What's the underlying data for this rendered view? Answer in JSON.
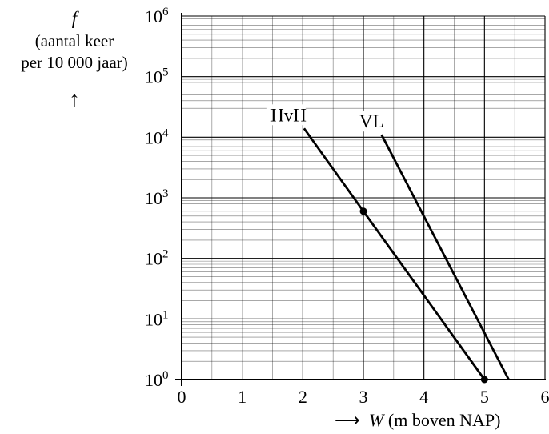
{
  "chart_data": {
    "type": "line",
    "title": "",
    "ylabel_symbol": "f",
    "ylabel_line1": "(aantal keer",
    "ylabel_line2": "per 10 000 jaar)",
    "ylabel_arrow": "↑",
    "xlabel_arrow": "⟶",
    "xlabel_symbol": "W",
    "xlabel_text": " (m boven NAP)",
    "x_scale": "linear",
    "y_scale": "log",
    "xlim": [
      0,
      6
    ],
    "ylim": [
      1,
      1000000
    ],
    "x_ticks": [
      0,
      1,
      2,
      3,
      4,
      5,
      6
    ],
    "y_tick_exponents": [
      0,
      1,
      2,
      3,
      4,
      5,
      6
    ],
    "grid": true,
    "series": [
      {
        "name": "HvH",
        "points": [
          [
            2.02,
            14000
          ],
          [
            3.0,
            600
          ],
          [
            5.0,
            1
          ]
        ],
        "marker_points": [
          [
            3.0,
            600
          ],
          [
            5.0,
            1
          ]
        ],
        "color": "#000000"
      },
      {
        "name": "VL",
        "points": [
          [
            3.3,
            11000
          ],
          [
            5.4,
            1
          ]
        ],
        "marker_points": [],
        "color": "#000000"
      }
    ]
  }
}
